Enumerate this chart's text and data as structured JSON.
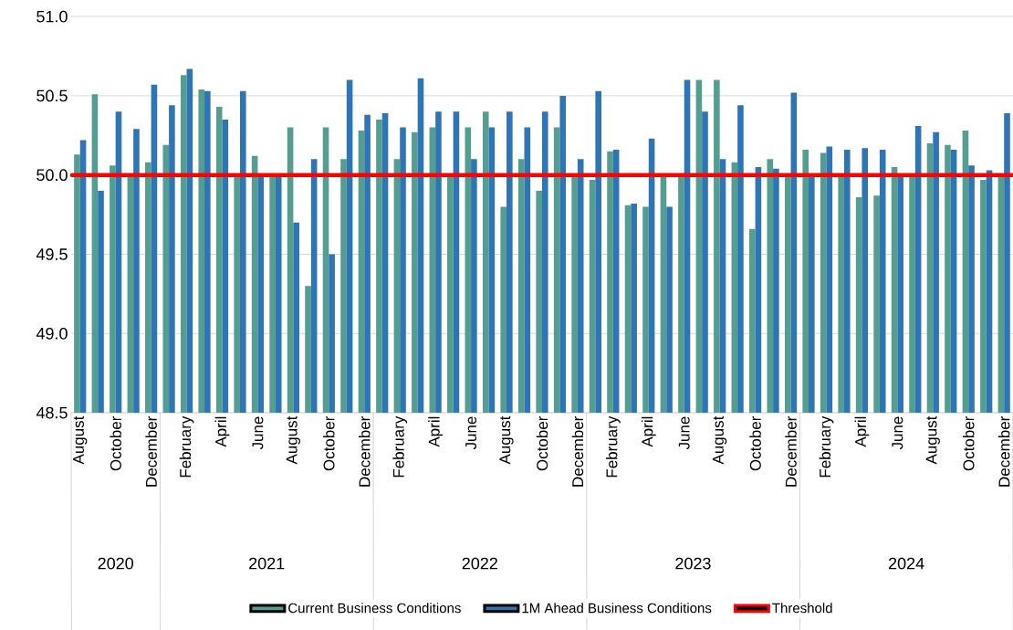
{
  "chart_data": {
    "type": "bar",
    "categories": [
      "August",
      null,
      "October",
      null,
      "December",
      null,
      "February",
      null,
      "April",
      null,
      "June",
      null,
      "August",
      null,
      "October",
      null,
      "December",
      null,
      "February",
      null,
      "April",
      null,
      "June",
      null,
      "August",
      null,
      "October",
      null,
      "December",
      null,
      "February",
      null,
      "April",
      null,
      "June",
      null,
      "August",
      null,
      "October",
      null,
      "December",
      null,
      "February",
      null,
      "April",
      null,
      "June",
      null,
      "August",
      null,
      "October",
      null,
      "December"
    ],
    "series": [
      {
        "name": "Current Business Conditions",
        "color": "#549e91",
        "values": [
          50.13,
          50.51,
          50.06,
          50.0,
          50.08,
          50.19,
          50.63,
          50.54,
          50.43,
          50.0,
          50.12,
          50.0,
          50.3,
          49.3,
          50.3,
          50.1,
          50.28,
          50.35,
          50.1,
          50.27,
          50.3,
          50.0,
          50.3,
          50.4,
          49.8,
          50.1,
          49.9,
          50.3,
          50.0,
          49.97,
          50.15,
          49.81,
          49.8,
          50.0,
          50.0,
          50.6,
          50.6,
          50.08,
          49.66,
          50.1,
          50.0,
          50.16,
          50.14,
          50.0,
          49.86,
          49.87,
          50.05,
          50.0,
          50.2,
          50.19,
          50.28,
          49.97,
          50.0
        ]
      },
      {
        "name": "1M Ahead Business Conditions",
        "color": "#2e75b6",
        "values": [
          50.22,
          49.9,
          50.4,
          50.29,
          50.57,
          50.44,
          50.67,
          50.53,
          50.35,
          50.53,
          50.0,
          50.0,
          49.7,
          50.1,
          49.5,
          50.6,
          50.38,
          50.39,
          50.3,
          50.61,
          50.4,
          50.4,
          50.1,
          50.3,
          50.4,
          50.3,
          50.4,
          50.5,
          50.1,
          50.53,
          50.16,
          49.82,
          50.23,
          49.8,
          50.6,
          50.4,
          50.1,
          50.44,
          50.05,
          50.04,
          50.52,
          50.0,
          50.18,
          50.16,
          50.17,
          50.16,
          50.0,
          50.31,
          50.27,
          50.16,
          50.06,
          50.03,
          50.39
        ]
      }
    ],
    "ylim": [
      48.5,
      51.0
    ],
    "yticks": [
      48.5,
      {
        "value": 49.0,
        "label": "49.0"
      },
      49.5,
      {
        "value": 50.0,
        "label": "50.0"
      },
      50.5,
      {
        "value": 51.0,
        "label": "51.0"
      }
    ],
    "grid": "y",
    "legend": "bottom",
    "ref_lines": [
      {
        "axis": "y",
        "value": 50.0,
        "label": "Threshold",
        "color": "#ff0000"
      }
    ],
    "annotations": [
      "2020",
      "2021",
      "2022",
      "2023",
      "2024"
    ]
  }
}
